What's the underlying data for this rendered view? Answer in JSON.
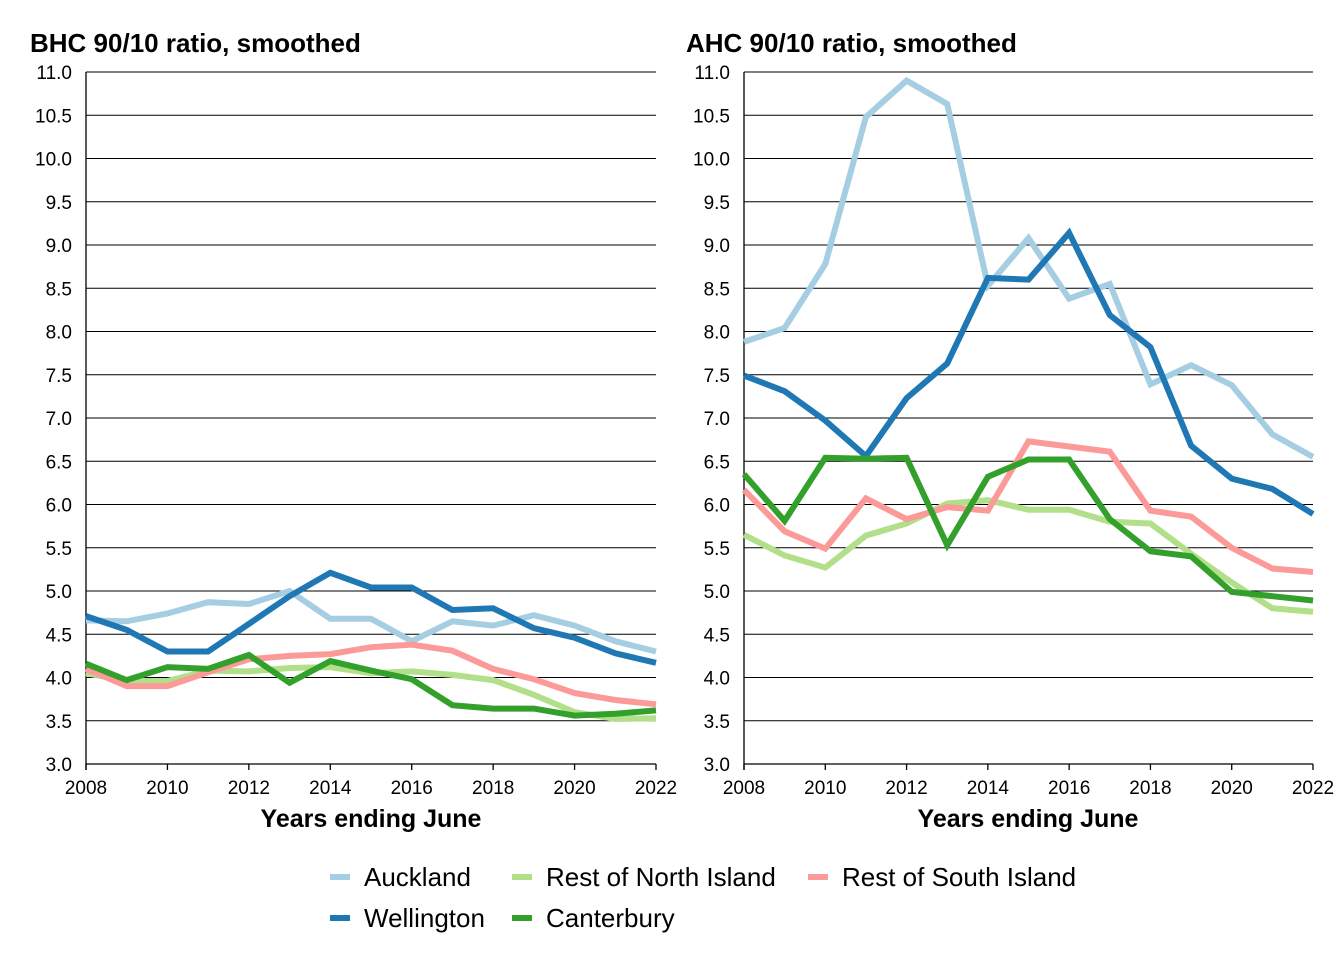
{
  "chart_data": [
    {
      "type": "line",
      "title": "BHC 90/10 ratio, smoothed",
      "xlabel": "Years ending June",
      "ylabel": "",
      "x": [
        2008,
        2009,
        2010,
        2011,
        2012,
        2013,
        2014,
        2015,
        2016,
        2017,
        2018,
        2019,
        2020,
        2021,
        2022
      ],
      "xticks": [
        "2008",
        "2010",
        "2012",
        "2014",
        "2016",
        "2018",
        "2020",
        "2022"
      ],
      "yticks": [
        "3.0",
        "3.5",
        "4.0",
        "4.5",
        "5.0",
        "5.5",
        "6.0",
        "6.5",
        "7.0",
        "7.5",
        "8.0",
        "8.5",
        "9.0",
        "9.5",
        "10.0",
        "10.5",
        "11.0"
      ],
      "ylim": [
        3.0,
        11.0
      ],
      "grid": "horizontal",
      "series": [
        {
          "name": "Auckland",
          "color": "#a6cee3",
          "values": [
            4.66,
            4.65,
            4.74,
            4.87,
            4.85,
            5.0,
            4.68,
            4.68,
            4.42,
            4.65,
            4.6,
            4.72,
            4.6,
            4.42,
            4.3
          ]
        },
        {
          "name": "Rest of North Island",
          "color": "#b2df8a",
          "values": [
            4.05,
            3.96,
            3.96,
            4.08,
            4.07,
            4.11,
            4.12,
            4.05,
            4.07,
            4.03,
            3.97,
            3.8,
            3.6,
            3.52,
            3.53
          ]
        },
        {
          "name": "Rest of South Island",
          "color": "#fb9a99",
          "values": [
            4.1,
            3.9,
            3.9,
            4.06,
            4.21,
            4.25,
            4.27,
            4.35,
            4.38,
            4.31,
            4.1,
            3.98,
            3.82,
            3.74,
            3.69
          ]
        },
        {
          "name": "Wellington",
          "color": "#1f78b4",
          "values": [
            4.71,
            4.55,
            4.3,
            4.3,
            4.62,
            4.94,
            5.21,
            5.04,
            5.04,
            4.78,
            4.8,
            4.57,
            4.46,
            4.28,
            4.17
          ]
        },
        {
          "name": "Canterbury",
          "color": "#33a02c",
          "values": [
            4.16,
            3.97,
            4.12,
            4.1,
            4.26,
            3.94,
            4.19,
            4.08,
            3.98,
            3.68,
            3.64,
            3.64,
            3.56,
            3.58,
            3.62
          ]
        }
      ]
    },
    {
      "type": "line",
      "title": "AHC 90/10 ratio, smoothed",
      "xlabel": "Years ending June",
      "ylabel": "",
      "x": [
        2008,
        2009,
        2010,
        2011,
        2012,
        2013,
        2014,
        2015,
        2016,
        2017,
        2018,
        2019,
        2020,
        2021,
        2022
      ],
      "xticks": [
        "2008",
        "2010",
        "2012",
        "2014",
        "2016",
        "2018",
        "2020",
        "2022"
      ],
      "yticks": [
        "3.0",
        "3.5",
        "4.0",
        "4.5",
        "5.0",
        "5.5",
        "6.0",
        "6.5",
        "7.0",
        "7.5",
        "8.0",
        "8.5",
        "9.0",
        "9.5",
        "10.0",
        "10.5",
        "11.0"
      ],
      "ylim": [
        3.0,
        11.0
      ],
      "grid": "horizontal",
      "series": [
        {
          "name": "Auckland",
          "color": "#a6cee3",
          "values": [
            7.88,
            8.04,
            8.78,
            10.48,
            10.9,
            10.63,
            8.53,
            9.08,
            8.38,
            8.55,
            7.39,
            7.61,
            7.38,
            6.81,
            6.55
          ]
        },
        {
          "name": "Rest of North Island",
          "color": "#b2df8a",
          "values": [
            5.65,
            5.41,
            5.27,
            5.64,
            5.78,
            6.01,
            6.05,
            5.94,
            5.94,
            5.8,
            5.78,
            5.43,
            5.1,
            4.8,
            4.76
          ]
        },
        {
          "name": "Rest of South Island",
          "color": "#fb9a99",
          "values": [
            6.17,
            5.69,
            5.49,
            6.07,
            5.83,
            5.97,
            5.93,
            6.73,
            6.67,
            6.61,
            5.93,
            5.86,
            5.5,
            5.26,
            5.22
          ]
        },
        {
          "name": "Wellington",
          "color": "#1f78b4",
          "values": [
            7.49,
            7.31,
            6.97,
            6.56,
            7.23,
            7.63,
            8.62,
            8.6,
            9.14,
            8.19,
            7.82,
            6.68,
            6.3,
            6.18,
            5.89
          ]
        },
        {
          "name": "Canterbury",
          "color": "#33a02c",
          "values": [
            6.35,
            5.81,
            6.54,
            6.53,
            6.54,
            5.53,
            6.32,
            6.52,
            6.52,
            5.83,
            5.46,
            5.4,
            4.99,
            4.94,
            4.89
          ]
        }
      ]
    }
  ],
  "legend": [
    {
      "name": "Auckland",
      "color": "#a6cee3"
    },
    {
      "name": "Rest of North Island",
      "color": "#b2df8a"
    },
    {
      "name": "Rest of South Island",
      "color": "#fb9a99"
    },
    {
      "name": "Wellington",
      "color": "#1f78b4"
    },
    {
      "name": "Canterbury",
      "color": "#33a02c"
    }
  ],
  "legend_placement": "bottom-center"
}
